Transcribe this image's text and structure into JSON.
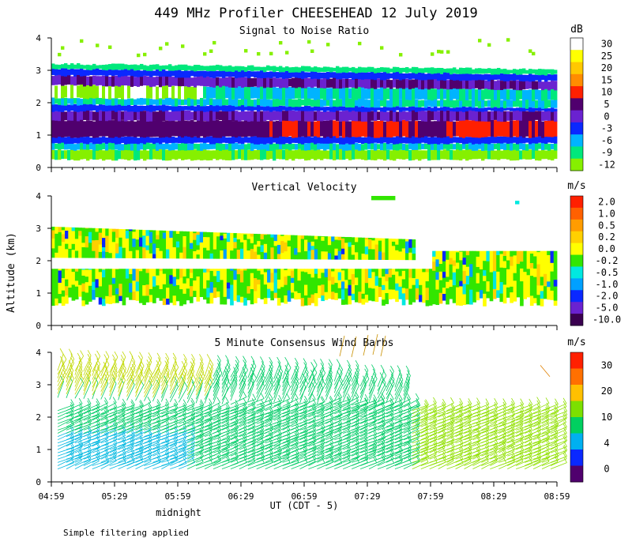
{
  "title": "449 MHz Profiler CHEESEHEAD 12 July 2019",
  "y_axis_label": "Altitude (km)",
  "x_axis_label": "UT  (CDT - 5)",
  "midnight_label": "midnight",
  "footnote": "Simple filtering applied",
  "chart_data": [
    {
      "type": "heatmap",
      "title": "Signal to Noise Ratio",
      "unit": "dB",
      "ylim": [
        0,
        4
      ],
      "y_ticks": [
        "0",
        "1",
        "2",
        "3",
        "4"
      ],
      "x_ticks": [
        "04:59",
        "05:29",
        "05:59",
        "06:29",
        "06:59",
        "07:29",
        "07:59",
        "08:29",
        "08:59"
      ],
      "colorbar": {
        "labels": [
          "30",
          "25",
          "20",
          "15",
          "10",
          "5",
          "0",
          "-3",
          "-6",
          "-9",
          "-12"
        ],
        "colors": [
          "#ffffff",
          "#ffff00",
          "#ffc800",
          "#ff8c00",
          "#ff2000",
          "#50006e",
          "#6a22d0",
          "#0a28ff",
          "#00b4ff",
          "#00e87c",
          "#86f000"
        ]
      }
    },
    {
      "type": "heatmap",
      "title": "Vertical Velocity",
      "unit": "m/s",
      "ylim": [
        0,
        4
      ],
      "y_ticks": [
        "0",
        "1",
        "2",
        "3",
        "4"
      ],
      "x_ticks": [
        "04:59",
        "05:29",
        "05:59",
        "06:29",
        "06:59",
        "07:29",
        "07:59",
        "08:29",
        "08:59"
      ],
      "colorbar": {
        "labels": [
          "2.0",
          "1.0",
          "0.5",
          "0.2",
          "0.0",
          "-0.2",
          "-0.5",
          "-1.0",
          "-2.0",
          "-5.0",
          "-10.0"
        ],
        "colors": [
          "#ff2000",
          "#ff6000",
          "#ff9c00",
          "#ffd000",
          "#ffff00",
          "#32e600",
          "#00e8e0",
          "#00a0ff",
          "#0a28ff",
          "#6a22d0",
          "#3a0050"
        ]
      }
    },
    {
      "type": "wind_barbs",
      "title": "5 Minute Consensus Wind Barbs",
      "unit": "m/s",
      "ylim": [
        0,
        4
      ],
      "y_ticks": [
        "0",
        "1",
        "2",
        "3",
        "4"
      ],
      "x_ticks": [
        "04:59",
        "05:29",
        "05:59",
        "06:29",
        "06:59",
        "07:29",
        "07:59",
        "08:29",
        "08:59"
      ],
      "colorbar": {
        "labels": [
          "30",
          "20",
          "10",
          "4",
          "0"
        ],
        "colors": [
          "#ff2000",
          "#ff7000",
          "#ffc000",
          "#7ce000",
          "#00d060",
          "#00b0f0",
          "#0a28ff",
          "#50006e"
        ]
      }
    }
  ]
}
